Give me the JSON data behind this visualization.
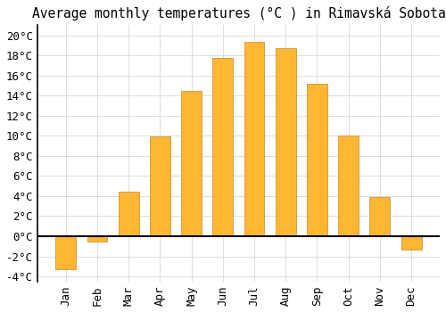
{
  "title": "Average monthly temperatures (°C ) in Rimavská Sobota",
  "months": [
    "Jan",
    "Feb",
    "Mar",
    "Apr",
    "May",
    "Jun",
    "Jul",
    "Aug",
    "Sep",
    "Oct",
    "Nov",
    "Dec"
  ],
  "values": [
    -3.3,
    -0.5,
    4.4,
    9.9,
    14.5,
    17.7,
    19.3,
    18.7,
    15.2,
    10.0,
    3.9,
    -1.3
  ],
  "bar_color_top": "#FFB733",
  "bar_color_bottom": "#F5A623",
  "bar_edge_color": "#C8882A",
  "background_color": "#FFFFFF",
  "grid_color": "#DDDDDD",
  "ylim": [
    -4.5,
    21
  ],
  "yticks": [
    -4,
    -2,
    0,
    2,
    4,
    6,
    8,
    10,
    12,
    14,
    16,
    18,
    20
  ],
  "title_fontsize": 10.5,
  "tick_fontsize": 9,
  "zero_line_color": "#000000"
}
